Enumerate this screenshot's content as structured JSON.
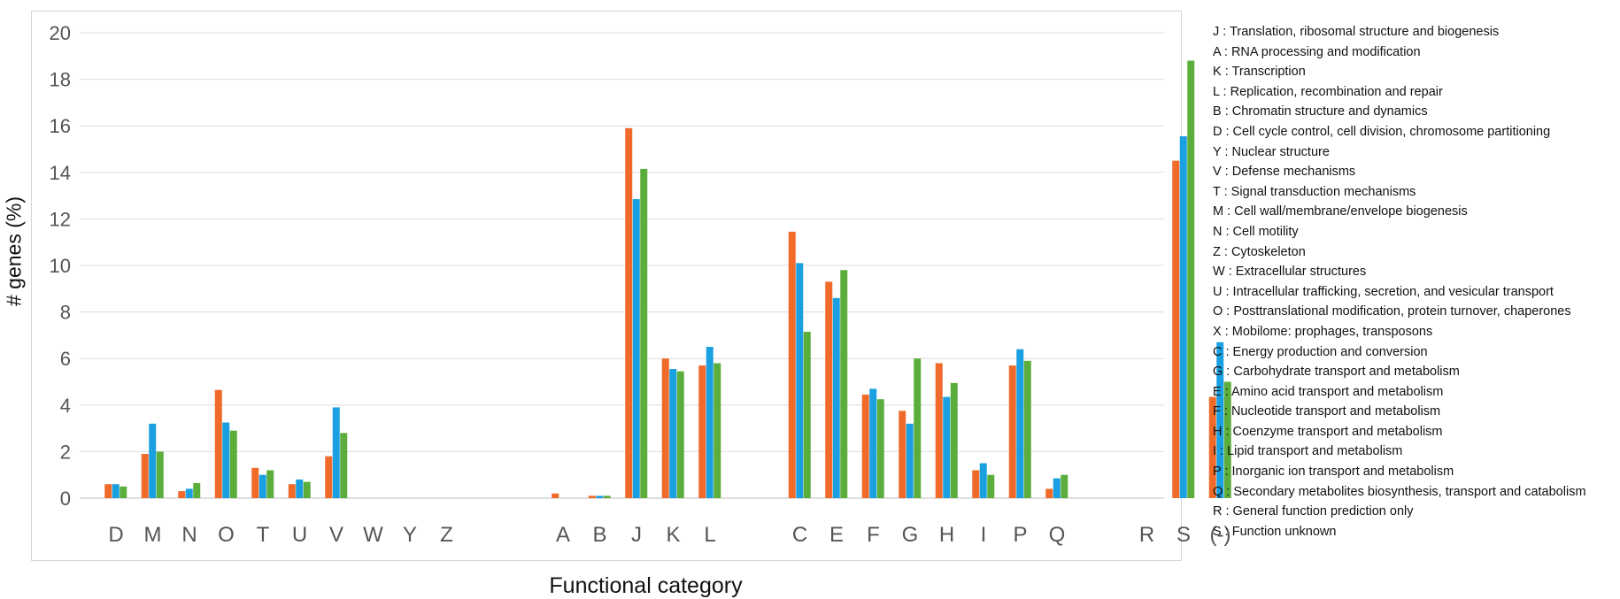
{
  "chart_data": {
    "type": "bar",
    "xlabel": "Functional category",
    "ylabel": "# genes (%)",
    "ylim": [
      0,
      20
    ],
    "yticks": [
      "0",
      "2",
      "4",
      "6",
      "8",
      "10",
      "12",
      "14",
      "16",
      "18",
      "20"
    ],
    "grid": true,
    "legend_position": "right",
    "categories": [
      "D",
      "M",
      "N",
      "O",
      "T",
      "U",
      "V",
      "W",
      "Y",
      "Z",
      "A",
      "B",
      "J",
      "K",
      "L",
      "C",
      "E",
      "F",
      "G",
      "H",
      "I",
      "P",
      "Q",
      "R",
      "S",
      "(-)"
    ],
    "series": [
      {
        "color": "#f06a2a",
        "values": [
          0.6,
          1.9,
          0.3,
          4.65,
          1.3,
          0.6,
          1.8,
          0,
          0,
          0,
          0.2,
          0.1,
          15.9,
          6.0,
          5.7,
          11.45,
          9.3,
          4.45,
          3.75,
          5.8,
          1.2,
          5.7,
          0.4,
          0,
          14.5,
          4.35
        ]
      },
      {
        "color": "#1a9fe0",
        "values": [
          0.6,
          3.2,
          0.4,
          3.25,
          1.0,
          0.8,
          3.9,
          0,
          0,
          0,
          0,
          0.1,
          12.85,
          5.55,
          6.5,
          10.1,
          8.6,
          4.7,
          3.2,
          4.35,
          1.5,
          6.4,
          0.85,
          0,
          15.55,
          6.7
        ]
      },
      {
        "color": "#5cae3c",
        "values": [
          0.5,
          2.0,
          0.65,
          2.9,
          1.2,
          0.7,
          2.8,
          0,
          0,
          0,
          0,
          0.1,
          14.15,
          5.45,
          5.8,
          7.15,
          9.8,
          4.25,
          6.0,
          4.95,
          1.0,
          5.9,
          1.0,
          0,
          18.8,
          5.0
        ]
      }
    ]
  },
  "legend": [
    "J : Translation, ribosomal structure and biogenesis",
    "A : RNA processing and modification",
    "K : Transcription",
    "L : Replication, recombination and repair",
    "B : Chromatin structure and dynamics",
    "D : Cell cycle control, cell division, chromosome partitioning",
    "Y : Nuclear structure",
    "V : Defense mechanisms",
    "T : Signal transduction mechanisms",
    "M : Cell wall/membrane/envelope biogenesis",
    "N : Cell motility",
    "Z : Cytoskeleton",
    "W : Extracellular structures",
    "U : Intracellular trafficking, secretion, and vesicular transport",
    "O : Posttranslational modification, protein turnover, chaperones",
    "X : Mobilome: prophages, transposons",
    "C : Energy production and conversion",
    "G : Carbohydrate transport and metabolism",
    "E : Amino acid transport and metabolism",
    "F : Nucleotide transport and metabolism",
    "H : Coenzyme transport and metabolism",
    "I : Lipid transport and metabolism",
    "P : Inorganic ion transport and metabolism",
    "Q : Secondary metabolites biosynthesis, transport and catabolism",
    "R : General function prediction only",
    "S : Function unknown"
  ]
}
